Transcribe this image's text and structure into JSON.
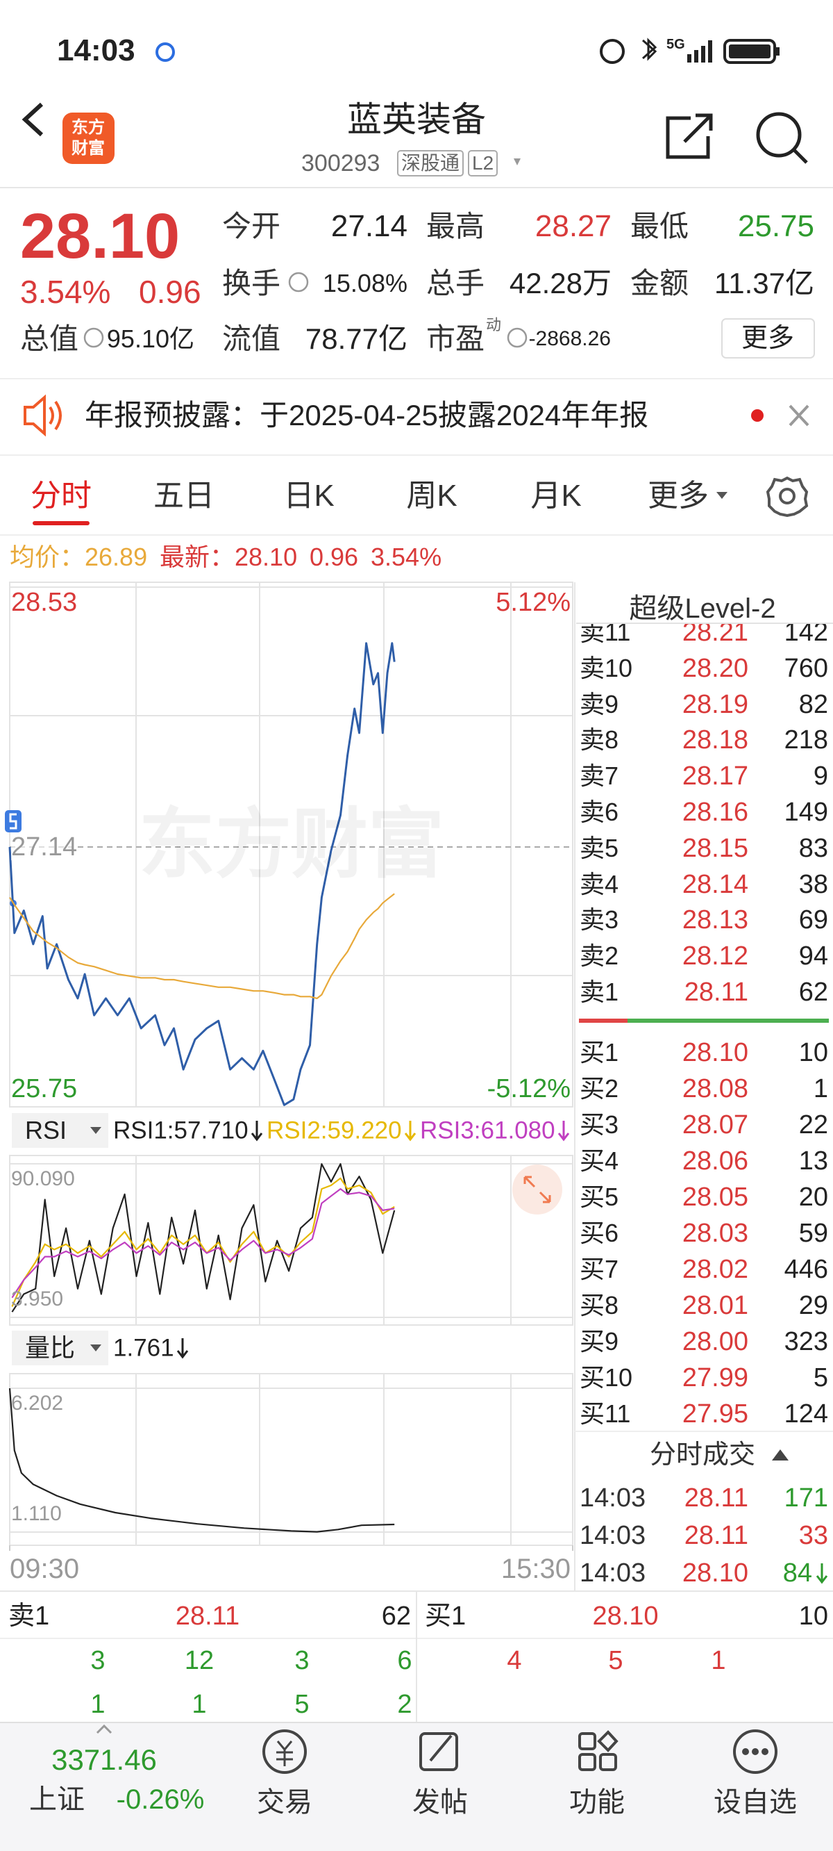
{
  "status": {
    "time": "14:03",
    "network": "5G"
  },
  "header": {
    "title": "蓝英装备",
    "code": "300293",
    "tags": [
      "深股通",
      "L2"
    ],
    "logo": [
      "东方",
      "财富"
    ]
  },
  "quote": {
    "price": "28.10",
    "change_pct": "3.54%",
    "change": "0.96",
    "fields": [
      {
        "label": "今开",
        "value": "27.14"
      },
      {
        "label": "最高",
        "value": "28.27"
      },
      {
        "label": "最低",
        "value": "25.75"
      },
      {
        "label": "换手",
        "value": "15.08%"
      },
      {
        "label": "总手",
        "value": "42.28万"
      },
      {
        "label": "金额",
        "value": "11.37亿"
      },
      {
        "label": "总值",
        "value": "95.10亿"
      },
      {
        "label": "流值",
        "value": "78.77亿"
      },
      {
        "label": "市盈",
        "sup": "动",
        "value": "-2868.26"
      }
    ],
    "more": "更多"
  },
  "notice": "年报预披露：于2025-04-25披露2024年年报",
  "tabs": [
    "分时",
    "五日",
    "日K",
    "周K",
    "月K",
    "更多"
  ],
  "info": {
    "avg_label": "均价：",
    "avg": "26.89",
    "latest_label": "最新：",
    "latest": "28.10",
    "change": "0.96",
    "change_pct": "3.54%"
  },
  "watermark": "东方财富",
  "chart_data": [
    {
      "type": "line",
      "x": [
        0,
        2,
        6,
        10,
        14,
        16,
        20,
        25,
        29,
        32,
        36,
        41,
        46,
        51,
        56,
        62,
        66,
        70,
        74,
        79,
        84,
        89,
        94,
        99,
        104,
        108,
        113,
        117,
        121,
        124,
        128,
        131,
        133,
        137,
        141,
        144,
        147,
        149,
        152,
        155,
        157,
        159,
        161,
        163,
        164
      ],
      "series": [
        {
          "color": "#2f5ea8",
          "values": [
            27.14,
            26.68,
            26.8,
            26.62,
            26.77,
            26.49,
            26.62,
            26.43,
            26.33,
            26.46,
            26.24,
            26.33,
            26.24,
            26.33,
            26.17,
            26.24,
            26.08,
            26.17,
            25.95,
            26.11,
            26.17,
            26.21,
            25.95,
            26.01,
            25.95,
            26.05,
            25.89,
            25.76,
            25.79,
            25.95,
            26.08,
            26.62,
            26.87,
            27.12,
            27.31,
            27.63,
            27.88,
            27.75,
            28.23,
            28.01,
            28.07,
            27.75,
            28.07,
            28.23,
            28.13
          ]
        },
        {
          "color": "#e8a93a",
          "values": [
            26.87,
            26.83,
            26.76,
            26.69,
            26.65,
            26.63,
            26.6,
            26.55,
            26.52,
            26.51,
            26.5,
            26.48,
            26.46,
            26.45,
            26.44,
            26.44,
            26.43,
            26.43,
            26.42,
            26.41,
            26.4,
            26.39,
            26.39,
            26.38,
            26.37,
            26.37,
            26.36,
            26.35,
            26.35,
            26.34,
            26.34,
            26.33,
            26.35,
            26.45,
            26.53,
            26.58,
            26.65,
            26.7,
            26.75,
            26.79,
            26.81,
            26.84,
            26.86,
            26.88,
            26.89
          ]
        }
      ],
      "xlim": [
        0,
        240
      ],
      "ylim": [
        25.75,
        28.53
      ],
      "yticks": [
        25.75,
        27.14,
        28.53
      ],
      "y2lim": [
        -5.12,
        5.12
      ],
      "y2ticks": [
        {
          "value": -5.12,
          "label": "-5.12%"
        },
        {
          "value": 5.12,
          "label": "5.12%"
        }
      ]
    },
    {
      "type": "line",
      "selector": "RSI",
      "x": [
        1,
        6,
        11,
        15,
        19,
        24,
        29,
        34,
        39,
        44,
        49,
        54,
        59,
        64,
        69,
        74,
        79,
        84,
        89,
        94,
        99,
        104,
        109,
        114,
        119,
        124,
        129,
        133,
        137,
        141,
        144,
        149,
        154,
        159,
        164
      ],
      "series": [
        {
          "name": "RSI1:57.710",
          "color": "#222222",
          "values": [
            7,
            17,
            20,
            70,
            27,
            54,
            20,
            47,
            17,
            54,
            73,
            27,
            57,
            17,
            60,
            34,
            64,
            20,
            50,
            14,
            54,
            67,
            24,
            47,
            30,
            54,
            60,
            90,
            80,
            90,
            73,
            83,
            70,
            40,
            64
          ]
        },
        {
          "name": "RSI2:59.220",
          "color": "#e6b800",
          "values": [
            10,
            25,
            35,
            45,
            42,
            45,
            40,
            44,
            38,
            45,
            52,
            42,
            48,
            40,
            50,
            45,
            50,
            40,
            46,
            35,
            45,
            52,
            40,
            44,
            38,
            46,
            52,
            76,
            78,
            82,
            76,
            78,
            74,
            62,
            66
          ]
        },
        {
          "name": "RSI3:61.080",
          "color": "#c03fc0",
          "values": [
            15,
            25,
            32,
            38,
            38,
            41,
            38,
            41,
            37,
            42,
            46,
            40,
            44,
            39,
            46,
            42,
            46,
            40,
            43,
            36,
            42,
            47,
            40,
            42,
            39,
            43,
            48,
            68,
            72,
            76,
            73,
            74,
            72,
            64,
            65
          ]
        }
      ],
      "xlim": [
        0,
        240
      ],
      "ylim": [
        3.95,
        90.09
      ],
      "yticks": [
        {
          "value": 3.95,
          "label": "3.950"
        },
        {
          "value": 90.09,
          "label": "90.090"
        }
      ]
    },
    {
      "type": "line",
      "selector": "量比",
      "x": [
        0,
        2,
        5,
        10,
        20,
        30,
        45,
        60,
        80,
        100,
        120,
        131,
        140,
        150,
        164
      ],
      "series": [
        {
          "name": "1.761",
          "color": "#222222",
          "values": [
            6.2,
            4.0,
            3.2,
            2.8,
            2.4,
            2.1,
            1.8,
            1.6,
            1.4,
            1.25,
            1.15,
            1.12,
            1.2,
            1.35,
            1.38
          ]
        }
      ],
      "xlim": [
        0,
        240
      ],
      "ylim": [
        1.11,
        6.202
      ],
      "yticks": [
        {
          "value": 1.11,
          "label": "1.110"
        },
        6.202
      ],
      "xticks": [
        {
          "value": 0,
          "label": "09:30"
        },
        {
          "value": 240,
          "label": "15:30"
        }
      ]
    }
  ],
  "order_book": {
    "title": "超级Level-2",
    "sells": [
      {
        "label": "卖11",
        "price": "28.21",
        "volume": "142"
      },
      {
        "label": "卖10",
        "price": "28.20",
        "volume": "760"
      },
      {
        "label": "卖9",
        "price": "28.19",
        "volume": "82"
      },
      {
        "label": "卖8",
        "price": "28.18",
        "volume": "218"
      },
      {
        "label": "卖7",
        "price": "28.17",
        "volume": "9"
      },
      {
        "label": "卖6",
        "price": "28.16",
        "volume": "149"
      },
      {
        "label": "卖5",
        "price": "28.15",
        "volume": "83"
      },
      {
        "label": "卖4",
        "price": "28.14",
        "volume": "38"
      },
      {
        "label": "卖3",
        "price": "28.13",
        "volume": "69"
      },
      {
        "label": "卖2",
        "price": "28.12",
        "volume": "94"
      },
      {
        "label": "卖1",
        "price": "28.11",
        "volume": "62"
      }
    ],
    "buys": [
      {
        "label": "买1",
        "price": "28.10",
        "volume": "10"
      },
      {
        "label": "买2",
        "price": "28.08",
        "volume": "1"
      },
      {
        "label": "买3",
        "price": "28.07",
        "volume": "22"
      },
      {
        "label": "买4",
        "price": "28.06",
        "volume": "13"
      },
      {
        "label": "买5",
        "price": "28.05",
        "volume": "20"
      },
      {
        "label": "买6",
        "price": "28.03",
        "volume": "59"
      },
      {
        "label": "买7",
        "price": "28.02",
        "volume": "446"
      },
      {
        "label": "买8",
        "price": "28.01",
        "volume": "29"
      },
      {
        "label": "买9",
        "price": "28.00",
        "volume": "323"
      },
      {
        "label": "买10",
        "price": "27.99",
        "volume": "5"
      },
      {
        "label": "买11",
        "price": "27.95",
        "volume": "124"
      }
    ],
    "trades_title": "分时成交",
    "trades": [
      {
        "time": "14:03",
        "price": "28.11",
        "volume": "171",
        "color": "#2e9a2e"
      },
      {
        "time": "14:03",
        "price": "28.11",
        "volume": "33",
        "color": "#d93a3a"
      },
      {
        "time": "14:03",
        "price": "28.10",
        "volume": "84",
        "color": "#2e9a2e"
      }
    ]
  },
  "bottom_quotes": {
    "ask": {
      "label": "卖1",
      "price": "28.11",
      "volume": "62",
      "rows": [
        [
          "3",
          "12",
          "3",
          "6"
        ],
        [
          "1",
          "1",
          "5",
          "2"
        ]
      ]
    },
    "bid": {
      "label": "买1",
      "price": "28.10",
      "volume": "10",
      "rows": [
        [
          "4",
          "5",
          "1"
        ]
      ]
    }
  },
  "nav": {
    "index": {
      "value": "3371.46",
      "name": "上证",
      "change": "-0.26%"
    },
    "items": [
      "交易",
      "发帖",
      "功能",
      "设自选"
    ]
  }
}
